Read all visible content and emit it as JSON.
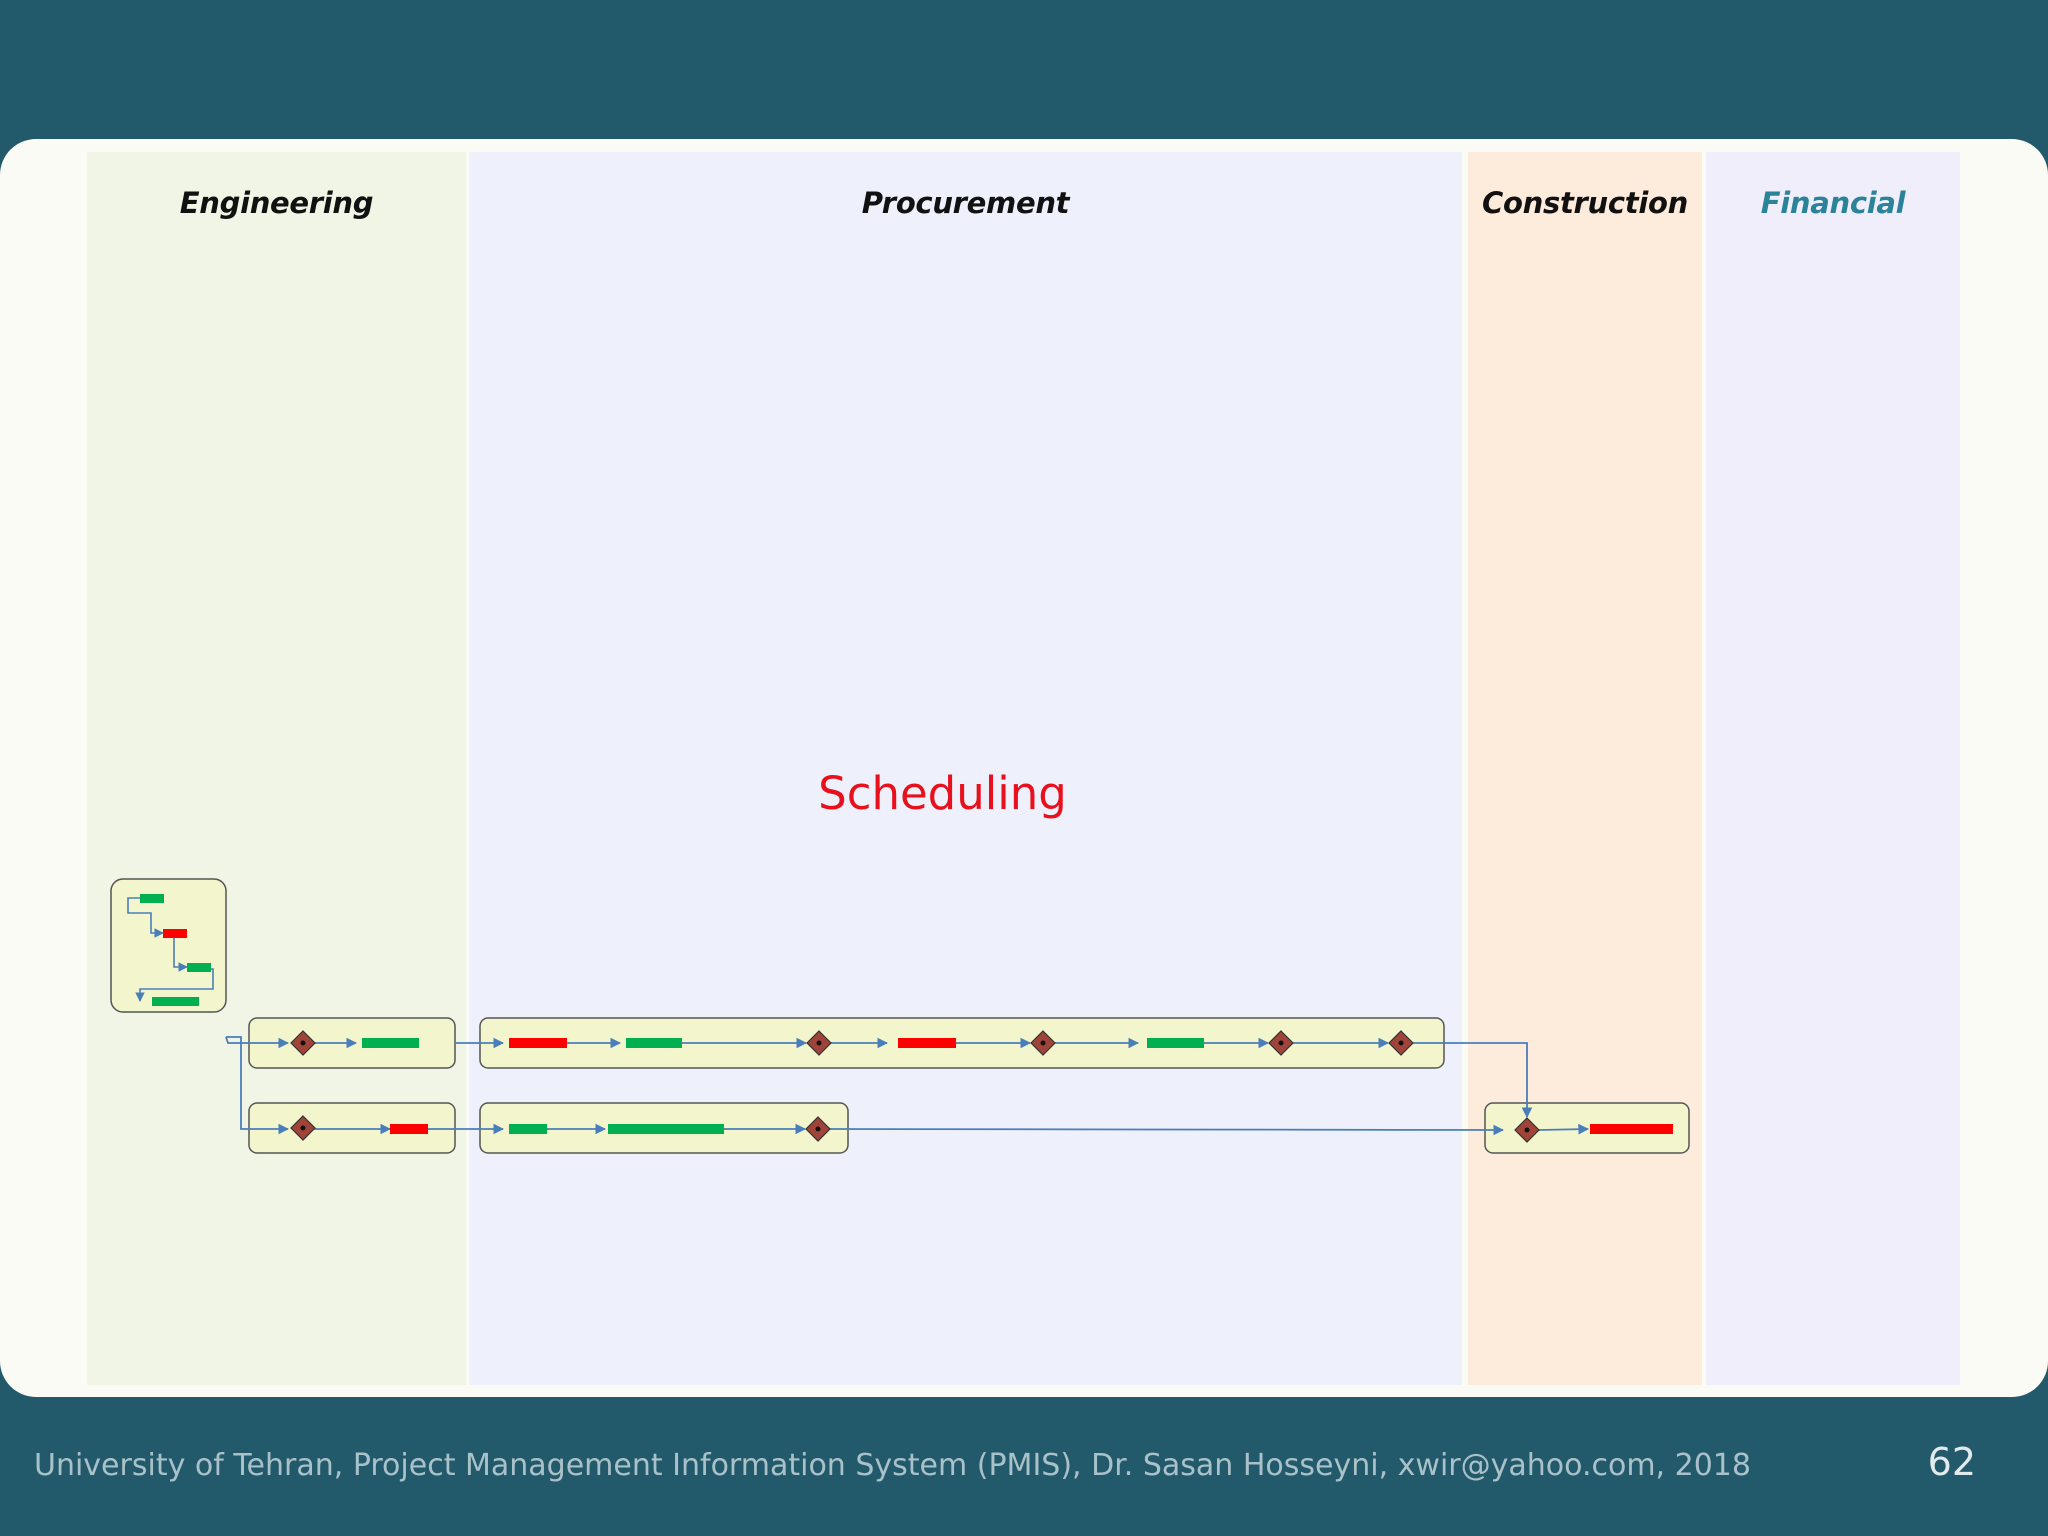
{
  "lanes": {
    "engineering": "Engineering",
    "procurement": "Procurement",
    "construction": "Construction",
    "financial": "Financial"
  },
  "diagram_label": "Scheduling",
  "footer": {
    "text": "University of Tehran, Project Management Information System (PMIS), Dr. Sasan Hosseyni, xwir@yahoo.com, 2018",
    "page": "62"
  },
  "colors": {
    "background": "#235a6b",
    "activity_ok": "#00b050",
    "activity_late": "#ff0000",
    "milestone": "#a0443a",
    "connector": "#4a7eba",
    "box_fill": "#f3f6cc",
    "financial_title": "#2b8399",
    "scheduling_label": "#e8101c"
  }
}
